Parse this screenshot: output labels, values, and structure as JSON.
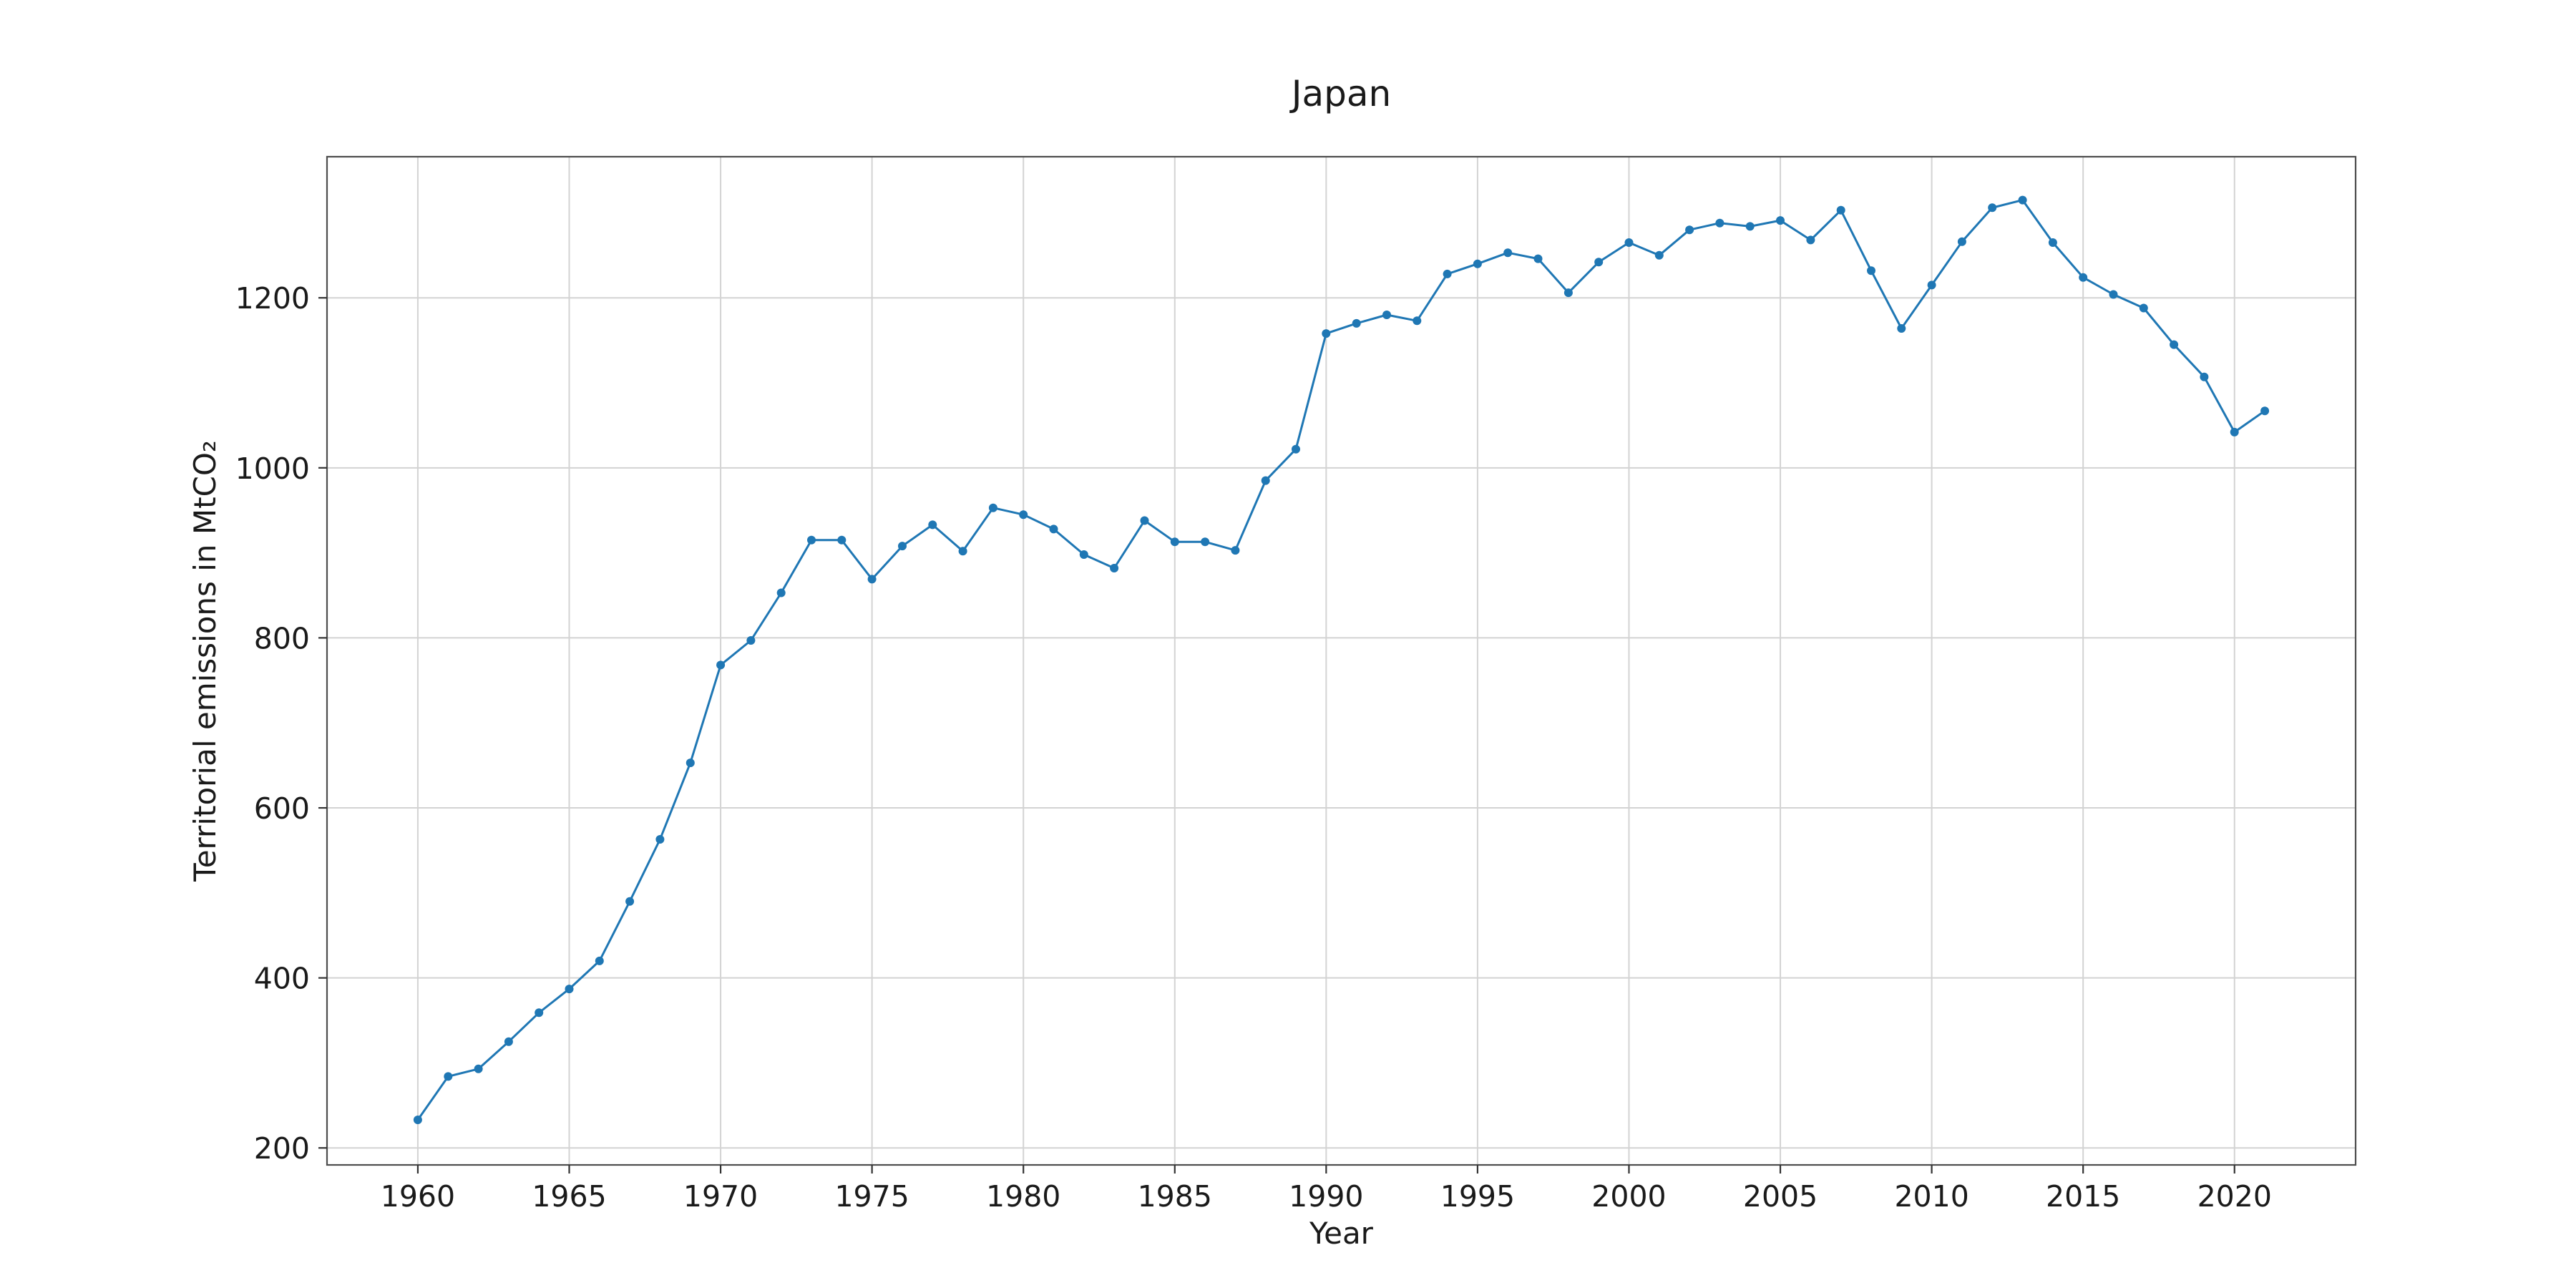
{
  "chart_data": {
    "type": "line",
    "title": "Japan",
    "xlabel": "Year",
    "ylabel": "Territorial emissions in MtCO₂",
    "xlim": [
      1957,
      2024
    ],
    "ylim": [
      180,
      1366
    ],
    "xticks": [
      1960,
      1965,
      1970,
      1975,
      1980,
      1985,
      1990,
      1995,
      2000,
      2005,
      2010,
      2015,
      2020
    ],
    "yticks": [
      200,
      400,
      600,
      800,
      1000,
      1200
    ],
    "grid": true,
    "legend": "none",
    "colors": {
      "series": "#1f77b4",
      "grid": "#d3d3d3",
      "frame": "#4d4d4d",
      "text": "#1a1a1a"
    },
    "x": [
      1960,
      1961,
      1962,
      1963,
      1964,
      1965,
      1966,
      1967,
      1968,
      1969,
      1970,
      1971,
      1972,
      1973,
      1974,
      1975,
      1976,
      1977,
      1978,
      1979,
      1980,
      1981,
      1982,
      1983,
      1984,
      1985,
      1986,
      1987,
      1988,
      1989,
      1990,
      1991,
      1992,
      1993,
      1994,
      1995,
      1996,
      1997,
      1998,
      1999,
      2000,
      2001,
      2002,
      2003,
      2004,
      2005,
      2006,
      2007,
      2008,
      2009,
      2010,
      2011,
      2012,
      2013,
      2014,
      2015,
      2016,
      2017,
      2018,
      2019,
      2020,
      2021
    ],
    "series": [
      {
        "values": [
          233,
          284,
          293,
          325,
          359,
          387,
          420,
          490,
          563,
          653,
          768,
          797,
          853,
          915,
          915,
          869,
          908,
          933,
          902,
          953,
          945,
          928,
          898,
          882,
          938,
          913,
          913,
          903,
          985,
          1022,
          1158,
          1170,
          1180,
          1173,
          1228,
          1240,
          1253,
          1246,
          1206,
          1242,
          1265,
          1250,
          1280,
          1288,
          1284,
          1291,
          1268,
          1303,
          1232,
          1164,
          1215,
          1266,
          1306,
          1315,
          1265,
          1224,
          1204,
          1188,
          1145,
          1107,
          1042,
          1067
        ]
      }
    ]
  }
}
